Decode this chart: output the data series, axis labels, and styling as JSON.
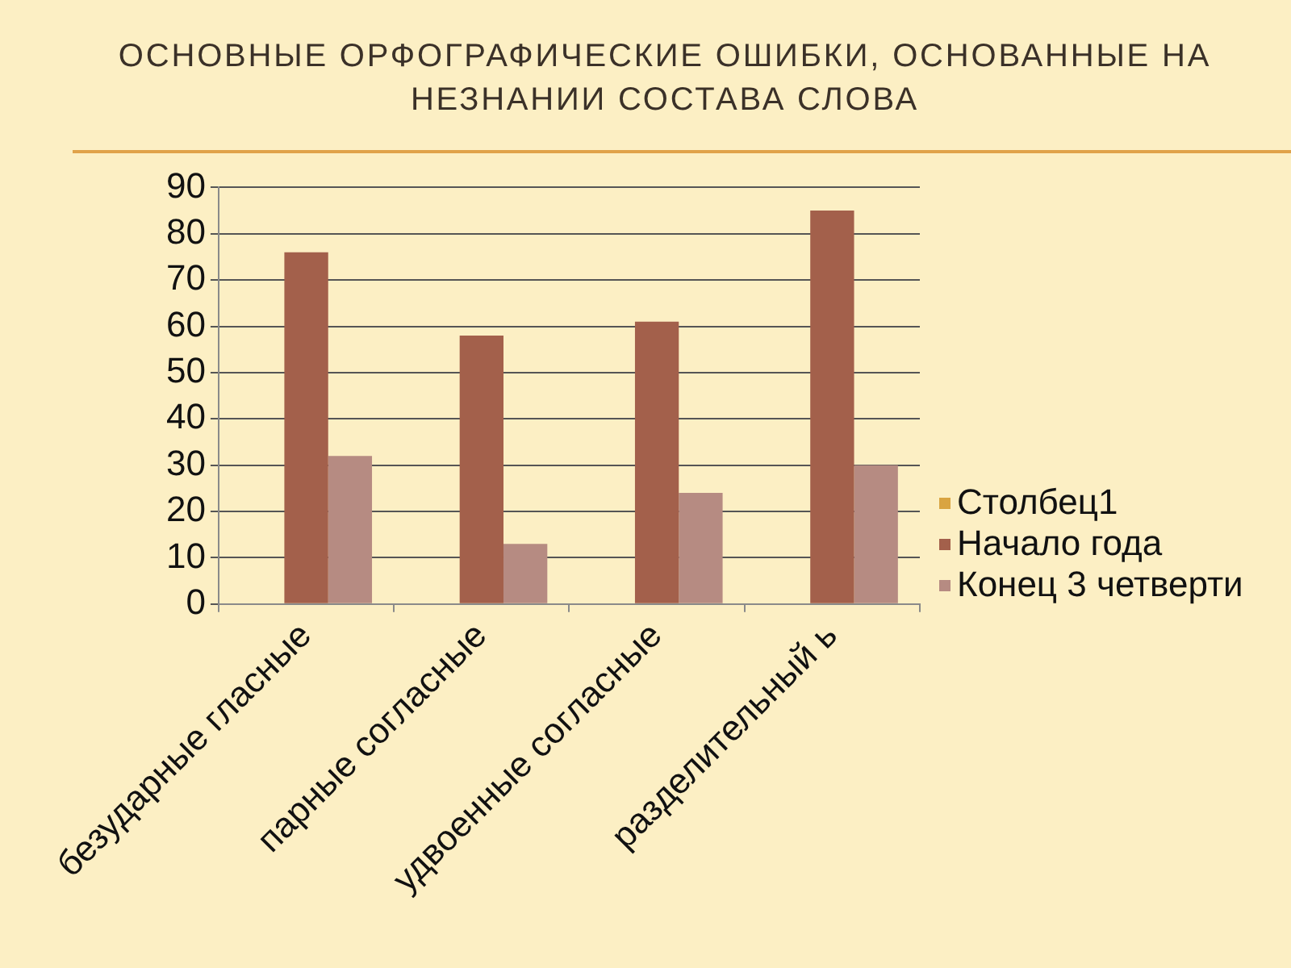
{
  "chart_data": {
    "type": "bar",
    "title": "ОСНОВНЫЕ ОРФОГРАФИЧЕСКИЕ ОШИБКИ, ОСНОВАННЫЕ НА НЕЗНАНИИ СОСТАВА СЛОВА",
    "categories": [
      "безударные гласные",
      "парные согласные",
      "удвоенные согласные",
      "разделительный ь"
    ],
    "series": [
      {
        "name": "Столбец1",
        "color": "#d9a441",
        "values": [
          null,
          null,
          null,
          null
        ]
      },
      {
        "name": "Начало года",
        "color": "#a3604b",
        "values": [
          76,
          58,
          61,
          85
        ]
      },
      {
        "name": "Конец 3 четверти",
        "color": "#b68b82",
        "values": [
          32,
          13,
          24,
          30
        ]
      }
    ],
    "ylim": [
      0,
      90
    ],
    "yticks": [
      0,
      10,
      20,
      30,
      40,
      50,
      60,
      70,
      80,
      90
    ],
    "grid": "y",
    "legend": "right"
  }
}
